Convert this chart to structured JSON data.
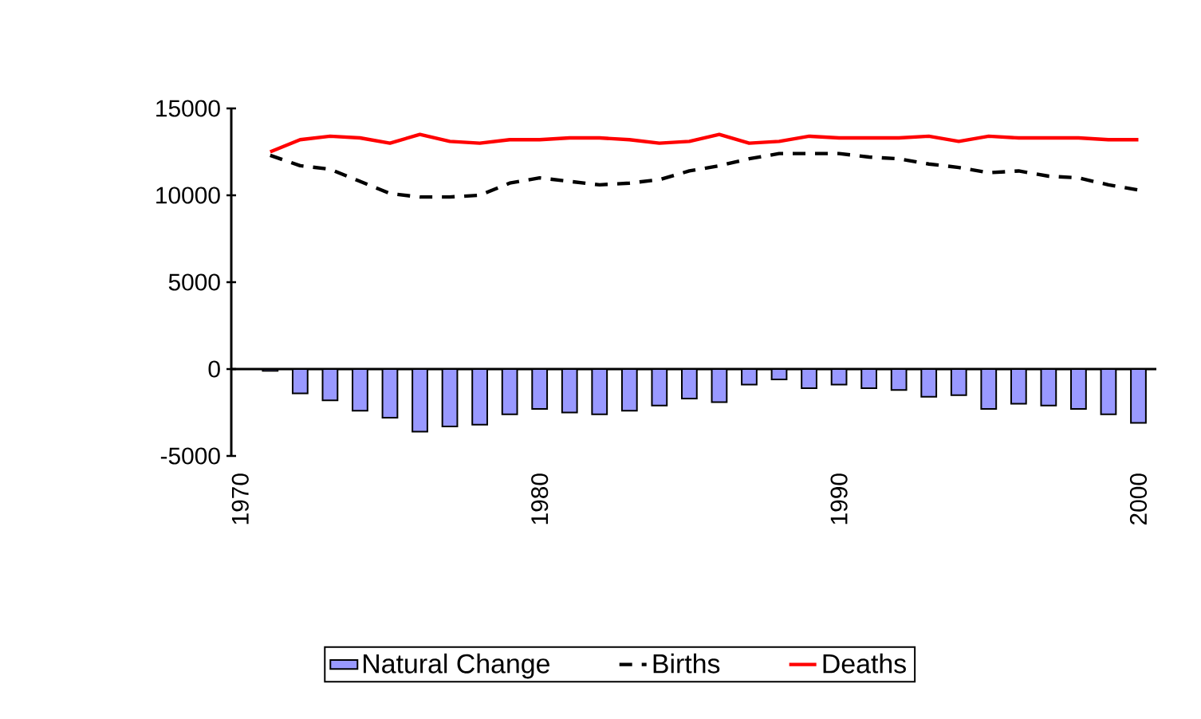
{
  "chart_data": {
    "type": "bar",
    "x": [
      1971,
      1972,
      1973,
      1974,
      1975,
      1976,
      1977,
      1978,
      1979,
      1980,
      1981,
      1982,
      1983,
      1984,
      1985,
      1986,
      1987,
      1988,
      1989,
      1990,
      1991,
      1992,
      1993,
      1994,
      1995,
      1996,
      1997,
      1998,
      1999,
      2000
    ],
    "series": [
      {
        "name": "Natural Change",
        "color": "#9999ff",
        "values": [
          -100,
          -1400,
          -1800,
          -2400,
          -2800,
          -3600,
          -3300,
          -3200,
          -2600,
          -2300,
          -2500,
          -2600,
          -2400,
          -2100,
          -1700,
          -1900,
          -900,
          -600,
          -1100,
          -900,
          -1100,
          -1200,
          -1600,
          -1500,
          -2300,
          -2000,
          -2100,
          -2300,
          -2600,
          -3100
        ]
      },
      {
        "name": "Births",
        "type": "line",
        "line_style": "dashed",
        "color": "#000000",
        "values": [
          12300,
          11700,
          11500,
          10800,
          10100,
          9900,
          9900,
          10000,
          10700,
          11000,
          10800,
          10600,
          10700,
          10900,
          11400,
          11700,
          12100,
          12400,
          12400,
          12400,
          12200,
          12100,
          11800,
          11600,
          11300,
          11400,
          11100,
          11000,
          10600,
          10300
        ]
      },
      {
        "name": "Deaths",
        "type": "line",
        "line_style": "solid",
        "color": "#ff0000",
        "values": [
          12500,
          13200,
          13400,
          13300,
          13000,
          13500,
          13100,
          13000,
          13200,
          13200,
          13300,
          13300,
          13200,
          13000,
          13100,
          13500,
          13000,
          13100,
          13400,
          13300,
          13300,
          13300,
          13400,
          13100,
          13400,
          13300,
          13300,
          13300,
          13200,
          13200
        ]
      }
    ],
    "xlim": [
      1969.7,
      2000.6
    ],
    "xticks": [
      1970,
      1980,
      1990,
      2000
    ],
    "ylim": [
      -5000,
      15000
    ],
    "yticks": [
      -5000,
      0,
      5000,
      10000,
      15000
    ],
    "legend": "bottom"
  }
}
